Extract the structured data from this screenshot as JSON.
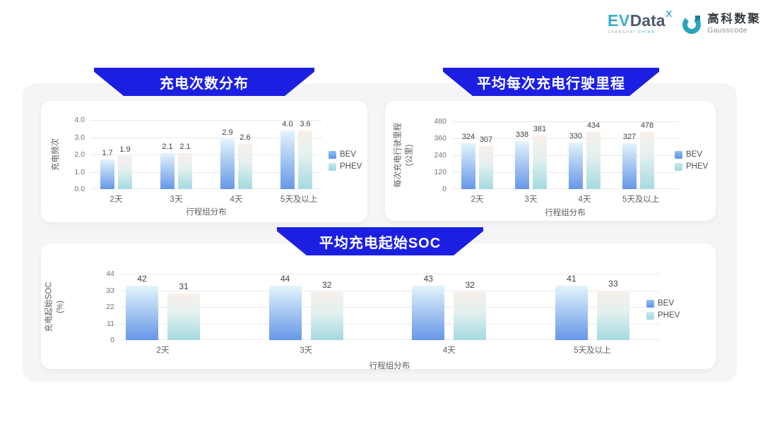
{
  "header": {
    "evdata_logo": {
      "ev": "EV",
      "data": "Data",
      "sup": "X",
      "tagline_a": "SHANGHAI",
      "tagline_b": "CHINA"
    },
    "gausscode_logo": {
      "name_cn": "高科数聚",
      "name_en": "Gausscode"
    }
  },
  "colors": {
    "banner_blue": "#1c1fe2",
    "panel_gray": "#f5f5f7",
    "bev_gradient_top": "#e3f4fb",
    "bev_gradient_bottom": "#6697e8",
    "phev_gradient_top": "#f8efe9",
    "phev_gradient_bottom": "#a4dae0",
    "logo_teal": "#3cadc9",
    "logo_slate": "#4e5b6d"
  },
  "chart_data": [
    {
      "type": "bar",
      "title": "充电次数分布",
      "ylabel_lines": [
        "充电频次"
      ],
      "xlabel": "行程组分布",
      "categories": [
        "2天",
        "3天",
        "4天",
        "5天及以上"
      ],
      "y_ticks": [
        "0.0",
        "1.0",
        "2.0",
        "3.0",
        "4.0"
      ],
      "ylim": [
        0,
        4
      ],
      "grid": true,
      "legend_position": "right",
      "series": [
        {
          "name": "BEV",
          "values": [
            1.7,
            2.1,
            2.9,
            4.0
          ],
          "labels": [
            "1.7",
            "2.1",
            "2.9",
            "4.0"
          ]
        },
        {
          "name": "PHEV",
          "values": [
            1.9,
            2.1,
            2.6,
            3.6
          ],
          "labels": [
            "1.9",
            "2.1",
            "2.6",
            "3.6"
          ]
        }
      ]
    },
    {
      "type": "bar",
      "title": "平均每次充电行驶里程",
      "ylabel_lines": [
        "每次充电行驶里程",
        "(公里)"
      ],
      "xlabel": "行程组分布",
      "categories": [
        "2天",
        "3天",
        "4天",
        "5天及以上"
      ],
      "y_ticks": [
        "0",
        "120",
        "240",
        "360",
        "480"
      ],
      "ylim": [
        0,
        480
      ],
      "grid": true,
      "legend_position": "right",
      "series": [
        {
          "name": "BEV",
          "values": [
            324,
            338,
            330,
            327
          ],
          "labels": [
            "324",
            "338",
            "330",
            "327"
          ]
        },
        {
          "name": "PHEV",
          "values": [
            307,
            381,
            434,
            478
          ],
          "labels": [
            "307",
            "381",
            "434",
            "478"
          ]
        }
      ]
    },
    {
      "type": "bar",
      "title": "平均充电起始SOC",
      "ylabel_lines": [
        "充电起始SOC",
        "(%)"
      ],
      "xlabel": "行程组分布",
      "categories": [
        "2天",
        "3天",
        "4天",
        "5天及以上"
      ],
      "y_ticks": [
        "0",
        "11",
        "22",
        "33",
        "44"
      ],
      "ylim": [
        0,
        44
      ],
      "grid": true,
      "legend_position": "right",
      "series": [
        {
          "name": "BEV",
          "values": [
            42,
            44,
            43,
            41
          ],
          "labels": [
            "42",
            "44",
            "43",
            "41"
          ]
        },
        {
          "name": "PHEV",
          "values": [
            31,
            32,
            32,
            33
          ],
          "labels": [
            "31",
            "32",
            "32",
            "33"
          ]
        }
      ]
    }
  ]
}
